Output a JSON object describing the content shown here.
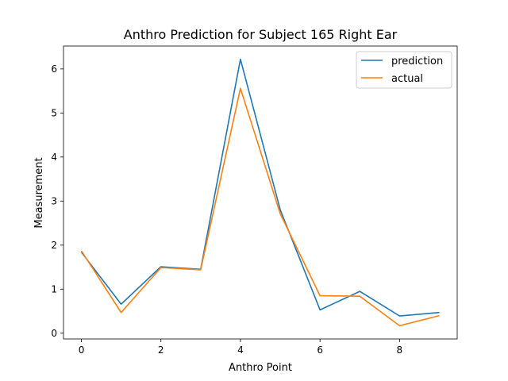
{
  "chart_data": {
    "type": "line",
    "title": "Anthro Prediction for Subject 165 Right Ear",
    "xlabel": "Anthro Point",
    "ylabel": "Measurement",
    "x": [
      0,
      1,
      2,
      3,
      4,
      5,
      6,
      7,
      8,
      9
    ],
    "xlim": [
      -0.45,
      9.45
    ],
    "ylim": [
      -0.13,
      6.52
    ],
    "xticks": [
      0,
      2,
      4,
      6,
      8
    ],
    "yticks": [
      0,
      1,
      2,
      3,
      4,
      5,
      6
    ],
    "grid": false,
    "legend_position": "top-right",
    "series": [
      {
        "name": "prediction",
        "color": "#1f77b4",
        "values": [
          1.84,
          0.66,
          1.51,
          1.45,
          6.22,
          2.8,
          0.53,
          0.95,
          0.39,
          0.47
        ]
      },
      {
        "name": "actual",
        "color": "#ff7f0e",
        "values": [
          1.87,
          0.47,
          1.49,
          1.44,
          5.56,
          2.71,
          0.85,
          0.84,
          0.17,
          0.4
        ]
      }
    ]
  }
}
